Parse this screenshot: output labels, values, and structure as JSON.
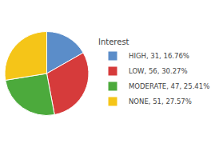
{
  "chart_data": {
    "type": "pie",
    "legend_title": "Interest",
    "categories": [
      "HIGH, 31, 16.76%",
      "LOW, 56, 30.27%",
      "MODERATE, 47, 25.41%",
      "NONE, 51, 27.57%"
    ],
    "values": [
      31,
      56,
      47,
      51
    ],
    "colors": [
      "#5b8dc9",
      "#d63b3b",
      "#4caa3c",
      "#f5c518"
    ],
    "legend": "right"
  }
}
